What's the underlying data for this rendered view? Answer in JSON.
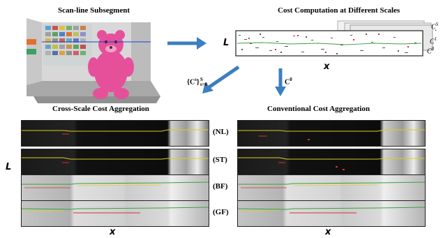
{
  "titles": {
    "scanline": "Scan-line Subsegment",
    "cost_computation": "Cost Computation at Different Scales",
    "cross_scale": "Cross-Scale Cost Aggregation",
    "conventional": "Conventional Cost Aggregation"
  },
  "axes": {
    "L": "L",
    "x": "x"
  },
  "scale_labels": [
    "C",
    "·",
    "C",
    "C"
  ],
  "scale_superscripts": [
    "S",
    "",
    "1",
    "0"
  ],
  "arrow_labels": {
    "left_main": "{C",
    "left_sup": "s",
    "left_close": "}",
    "left_limits_top": "S",
    "left_limits_bottom": "s=0",
    "right_main": "C",
    "right_sup": "0"
  },
  "methods": [
    "(NL)",
    "(ST)",
    "(BF)",
    "(GF)"
  ],
  "colors": {
    "arrow": "#3c7fc0",
    "teddy": "#e6509a",
    "curve_yellow": "#d8d020",
    "curve_red": "#d83030",
    "curve_green": "#3aa040"
  }
}
